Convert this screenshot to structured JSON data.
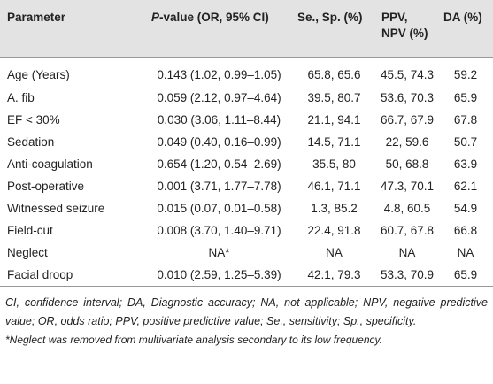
{
  "table": {
    "header": [
      "Parameter",
      [
        "P",
        "-value (OR, 95% CI)"
      ],
      "Se., Sp. (%)",
      "PPV, NPV (%)",
      "DA (%)"
    ],
    "rows": [
      [
        "Age (Years)",
        "0.143 (1.02, 0.99–1.05)",
        "65.8, 65.6",
        "45.5, 74.3",
        "59.2"
      ],
      [
        "A. fib",
        "0.059 (2.12, 0.97–4.64)",
        "39.5, 80.7",
        "53.6, 70.3",
        "65.9"
      ],
      [
        "EF < 30%",
        "0.030 (3.06, 1.11–8.44)",
        "21.1, 94.1",
        "66.7, 67.9",
        "67.8"
      ],
      [
        "Sedation",
        "0.049 (0.40, 0.16–0.99)",
        "14.5, 71.1",
        "22, 59.6",
        "50.7"
      ],
      [
        "Anti-coagulation",
        "0.654 (1.20, 0.54–2.69)",
        "35.5, 80",
        "50, 68.8",
        "63.9"
      ],
      [
        "Post-operative",
        "0.001 (3.71, 1.77–7.78)",
        "46.1, 71.1",
        "47.3, 70.1",
        "62.1"
      ],
      [
        "Witnessed seizure",
        "0.015 (0.07, 0.01–0.58)",
        "1.3, 85.2",
        "4.8, 60.5",
        "54.9"
      ],
      [
        "Field-cut",
        "0.008 (3.70, 1.40–9.71)",
        "22.4, 91.8",
        "60.7, 67.8",
        "66.8"
      ],
      [
        "Neglect",
        "NA*",
        "NA",
        "NA",
        "NA"
      ],
      [
        "Facial droop",
        "0.010 (2.59, 1.25–5.39)",
        "42.1, 79.3",
        "53.3, 70.9",
        "65.9"
      ]
    ],
    "notes": [
      "CI, confidence interval; DA, Diagnostic accuracy; NA, not applicable; NPV, negative predictive value; OR, odds ratio; PPV, positive predictive value; Se., sensitivity; Sp., specificity.",
      "*Neglect was removed from multivariate analysis secondary to its low frequency."
    ]
  }
}
